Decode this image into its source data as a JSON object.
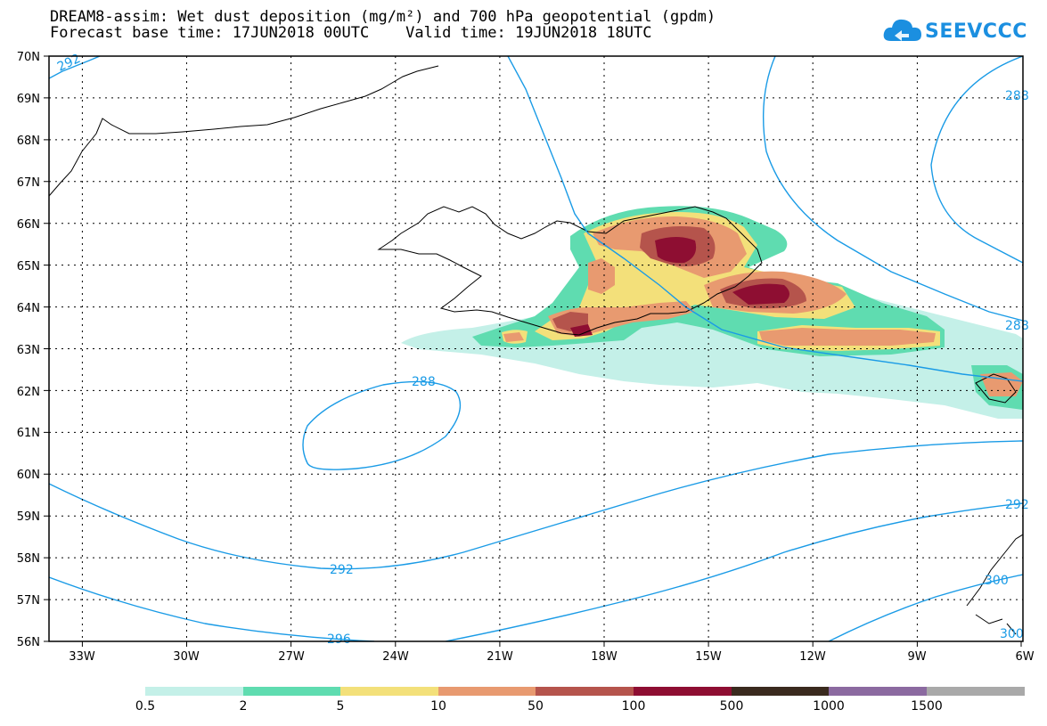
{
  "header": {
    "title_line1": "DREAM8-assim: Wet dust deposition (mg/m²) and 700 hPa geopotential (gpdm)",
    "title_line2": "Forecast base time: 17JUN2018 00UTC    Valid time: 19JUN2018 18UTC"
  },
  "logo": {
    "text": "SEEVCCC",
    "icon": "cloud-icon"
  },
  "map": {
    "lat_labels": [
      "70N",
      "69N",
      "68N",
      "67N",
      "66N",
      "65N",
      "64N",
      "63N",
      "62N",
      "61N",
      "60N",
      "59N",
      "58N",
      "57N",
      "56N"
    ],
    "lon_labels": [
      "33W",
      "30W",
      "27W",
      "24W",
      "21W",
      "18W",
      "15W",
      "12W",
      "9W",
      "6W"
    ],
    "contour_labels": [
      "292",
      "288",
      "292",
      "296",
      "288",
      "288",
      "292",
      "300",
      "300"
    ],
    "contour_color": "#1a9be6"
  },
  "colorbar": {
    "labels": [
      "0.5",
      "2",
      "5",
      "10",
      "50",
      "100",
      "500",
      "1000",
      "1500"
    ],
    "colors": [
      "#c4f0e8",
      "#5fdcb0",
      "#f3e07a",
      "#e89a70",
      "#b5544c",
      "#8e0e32",
      "#3a2a1e",
      "#8b6aa0",
      "#a9a9a9"
    ]
  }
}
